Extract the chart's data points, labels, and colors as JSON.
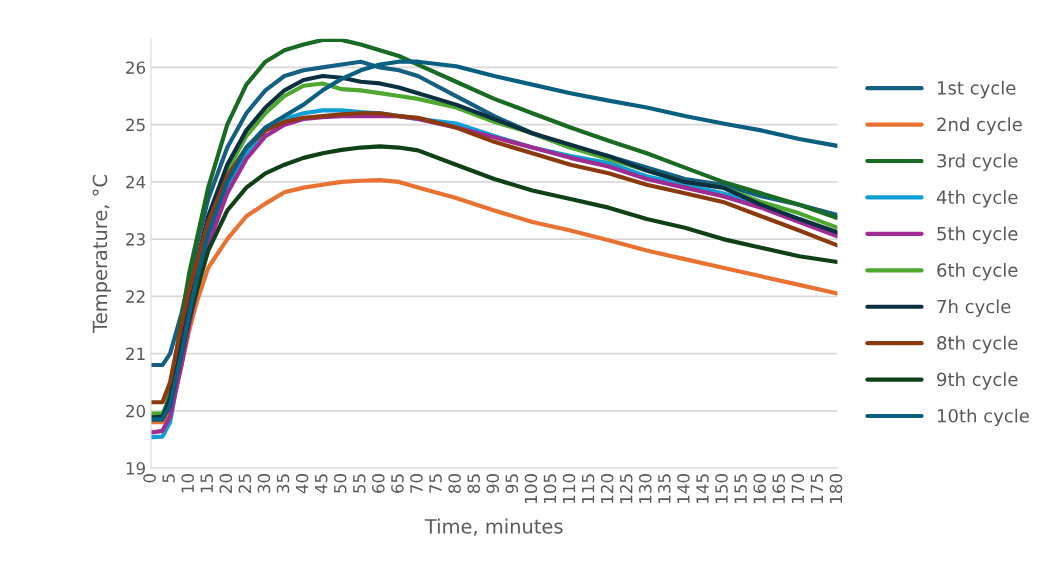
{
  "chart_data": {
    "type": "line",
    "xlabel": "Time, minutes",
    "ylabel": "Temperature, °C",
    "x": [
      0,
      3,
      5,
      8,
      10,
      12,
      15,
      20,
      25,
      30,
      35,
      40,
      45,
      50,
      55,
      60,
      65,
      70,
      80,
      90,
      100,
      110,
      120,
      130,
      140,
      150,
      160,
      170,
      180
    ],
    "xlim": [
      0,
      180
    ],
    "xticks": [
      0,
      5,
      10,
      15,
      20,
      25,
      30,
      35,
      40,
      45,
      50,
      55,
      60,
      65,
      70,
      75,
      80,
      85,
      90,
      95,
      100,
      105,
      110,
      115,
      120,
      125,
      130,
      135,
      140,
      145,
      150,
      155,
      160,
      165,
      170,
      175,
      180
    ],
    "ylim": [
      19,
      26.5
    ],
    "yticks": [
      19,
      20,
      21,
      22,
      23,
      24,
      25,
      26
    ],
    "grid": "y",
    "legend": "right",
    "marker": "none",
    "line_style": "solid",
    "series": [
      {
        "name": "1st cycle",
        "color": "#156082",
        "values": [
          20.8,
          20.8,
          21.0,
          21.7,
          22.3,
          22.9,
          23.7,
          24.6,
          25.2,
          25.6,
          25.85,
          25.95,
          26.0,
          26.05,
          26.1,
          26.0,
          25.95,
          25.85,
          25.5,
          25.15,
          24.85,
          24.6,
          24.45,
          24.25,
          24.05,
          23.95,
          23.75,
          23.6,
          23.42
        ]
      },
      {
        "name": "2nd cycle",
        "color": "#e97132",
        "values": [
          19.8,
          19.8,
          19.95,
          20.8,
          21.4,
          21.9,
          22.5,
          23.0,
          23.4,
          23.62,
          23.82,
          23.9,
          23.95,
          24.0,
          24.02,
          24.03,
          24.0,
          23.9,
          23.72,
          23.5,
          23.3,
          23.15,
          22.98,
          22.8,
          22.65,
          22.5,
          22.35,
          22.2,
          22.05
        ]
      },
      {
        "name": "3rd cycle",
        "color": "#196b24",
        "values": [
          19.9,
          19.9,
          20.3,
          21.6,
          22.4,
          23.0,
          23.9,
          25.0,
          25.7,
          26.1,
          26.3,
          26.4,
          26.48,
          26.48,
          26.4,
          26.3,
          26.2,
          26.05,
          25.75,
          25.45,
          25.2,
          24.95,
          24.72,
          24.5,
          24.25,
          24.0,
          23.8,
          23.6,
          23.37
        ]
      },
      {
        "name": "4th cycle",
        "color": "#0f9ed5",
        "values": [
          19.54,
          19.55,
          19.8,
          20.9,
          21.6,
          22.2,
          23.0,
          23.9,
          24.5,
          24.9,
          25.1,
          25.2,
          25.25,
          25.25,
          25.22,
          25.2,
          25.15,
          25.1,
          25.02,
          24.8,
          24.6,
          24.45,
          24.33,
          24.1,
          23.95,
          23.8,
          23.6,
          23.35,
          23.1
        ]
      },
      {
        "name": "5th cycle",
        "color": "#a02b93",
        "values": [
          19.62,
          19.65,
          19.9,
          20.8,
          21.5,
          22.1,
          22.9,
          23.8,
          24.4,
          24.8,
          25.0,
          25.1,
          25.13,
          25.15,
          25.15,
          25.15,
          25.15,
          25.1,
          24.95,
          24.78,
          24.6,
          24.42,
          24.27,
          24.05,
          23.9,
          23.75,
          23.55,
          23.3,
          23.05
        ]
      },
      {
        "name": "6th cycle",
        "color": "#4ea72e",
        "values": [
          19.95,
          19.95,
          20.2,
          21.2,
          21.9,
          22.5,
          23.3,
          24.2,
          24.8,
          25.2,
          25.5,
          25.68,
          25.72,
          25.62,
          25.6,
          25.55,
          25.5,
          25.45,
          25.3,
          25.05,
          24.85,
          24.6,
          24.4,
          24.2,
          24.0,
          23.9,
          23.65,
          23.45,
          23.2
        ]
      },
      {
        "name": "7h cycle",
        "color": "#0b3041",
        "values": [
          19.88,
          19.9,
          20.2,
          21.3,
          22.0,
          22.6,
          23.4,
          24.3,
          24.9,
          25.3,
          25.6,
          25.78,
          25.85,
          25.82,
          25.75,
          25.72,
          25.65,
          25.55,
          25.35,
          25.1,
          24.85,
          24.65,
          24.45,
          24.2,
          24.0,
          23.9,
          23.6,
          23.35,
          23.12
        ]
      },
      {
        "name": "8th cycle",
        "color": "#8b3a0f",
        "values": [
          20.15,
          20.15,
          20.5,
          21.5,
          22.1,
          22.6,
          23.3,
          24.1,
          24.6,
          24.9,
          25.05,
          25.12,
          25.15,
          25.18,
          25.2,
          25.2,
          25.15,
          25.12,
          24.95,
          24.7,
          24.5,
          24.3,
          24.15,
          23.95,
          23.8,
          23.65,
          23.4,
          23.15,
          22.89
        ]
      },
      {
        "name": "9th cycle",
        "color": "#0f4016",
        "values": [
          19.85,
          19.85,
          20.1,
          21.0,
          21.6,
          22.1,
          22.8,
          23.5,
          23.9,
          24.15,
          24.3,
          24.42,
          24.5,
          24.56,
          24.6,
          24.62,
          24.6,
          24.55,
          24.3,
          24.05,
          23.85,
          23.7,
          23.55,
          23.35,
          23.2,
          23.0,
          22.85,
          22.7,
          22.6
        ]
      },
      {
        "name": "10th cycle",
        "color": "#095f80",
        "values": [
          19.85,
          19.85,
          20.1,
          21.0,
          21.7,
          22.3,
          23.1,
          24.0,
          24.6,
          24.95,
          25.15,
          25.35,
          25.6,
          25.8,
          25.95,
          26.05,
          26.1,
          26.1,
          26.02,
          25.85,
          25.7,
          25.55,
          25.42,
          25.3,
          25.15,
          25.02,
          24.9,
          24.75,
          24.63
        ]
      }
    ]
  }
}
